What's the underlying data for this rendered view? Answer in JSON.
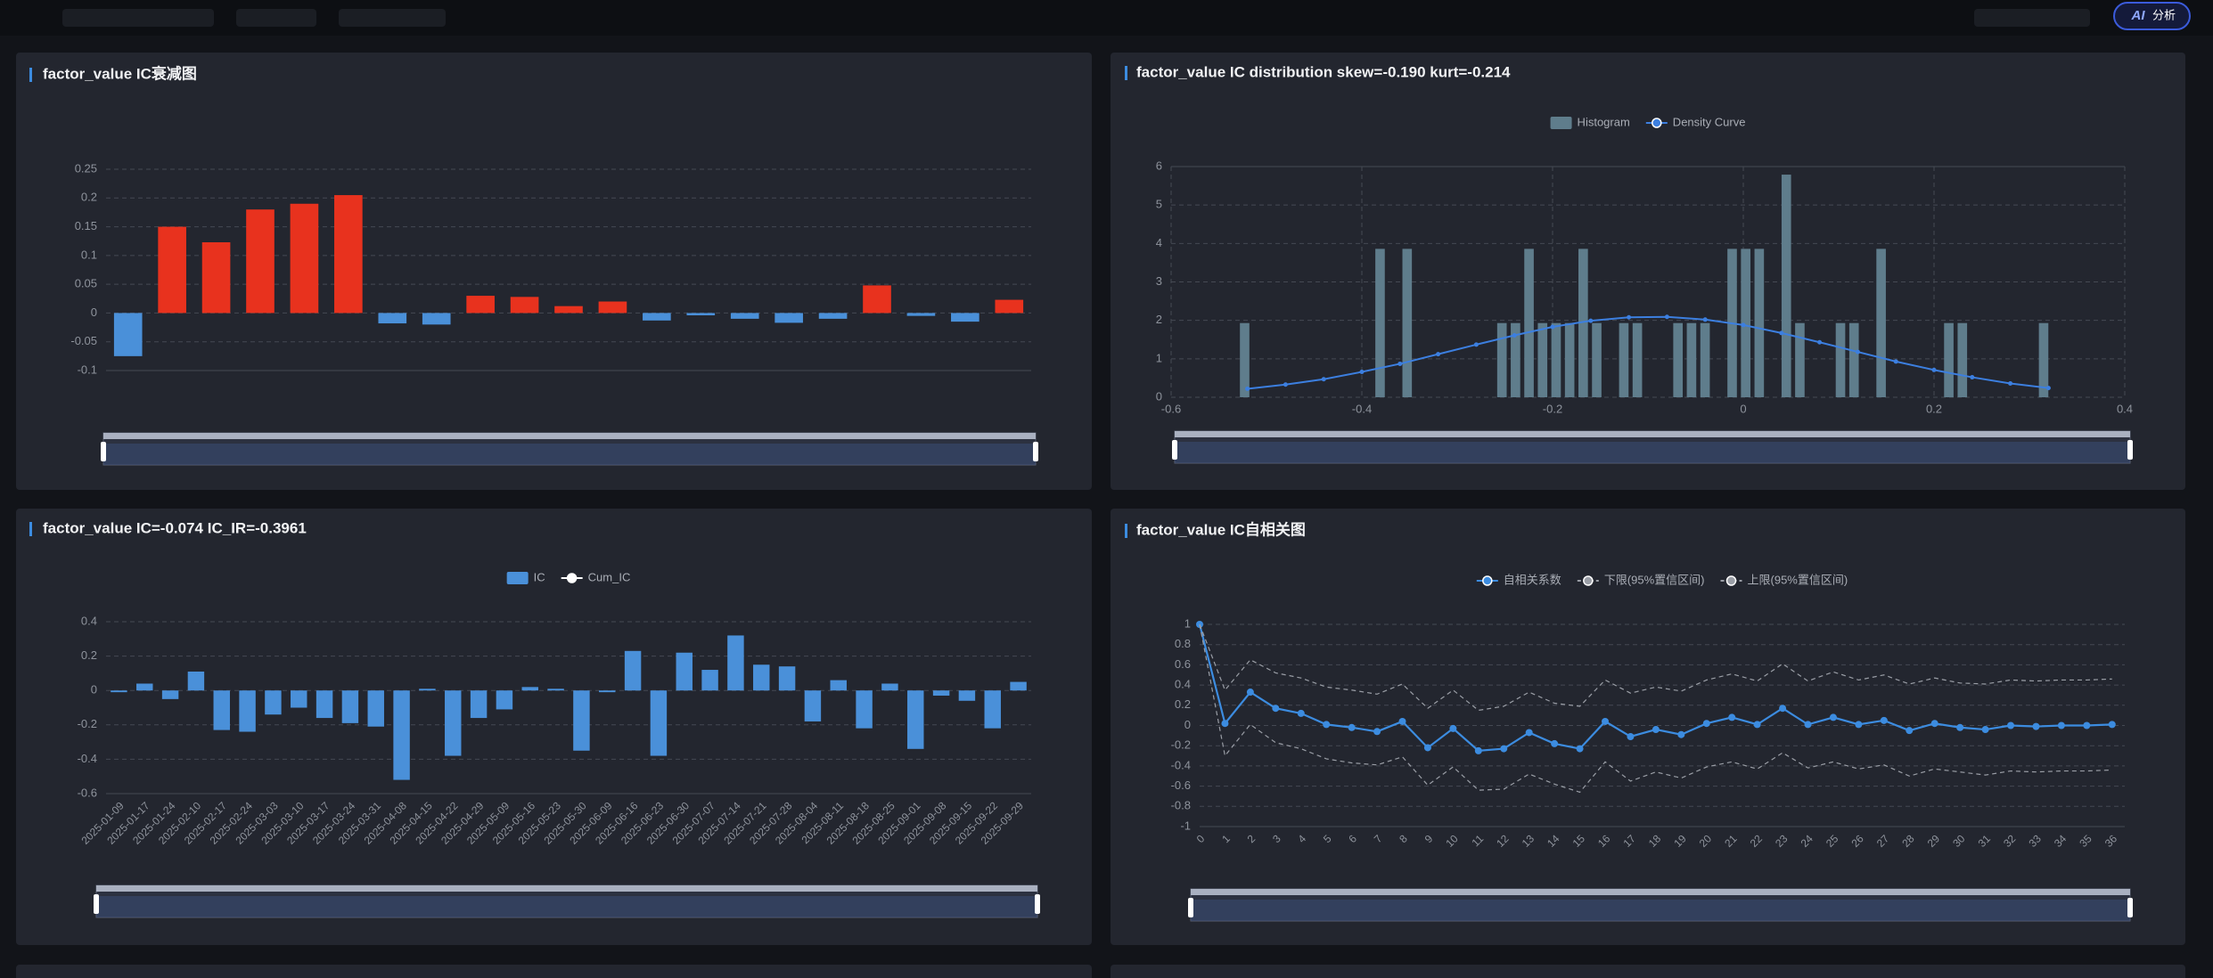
{
  "ai_button": {
    "icon": "AI",
    "label": "分析"
  },
  "chart_data": [
    {
      "type": "bar",
      "title": "factor_value IC衰减图",
      "categories": [
        null,
        null,
        null,
        null,
        null,
        null,
        null,
        null,
        null,
        null,
        null,
        null,
        null,
        null,
        null,
        null,
        null,
        null,
        null,
        null,
        null
      ],
      "values": [
        -0.075,
        0.15,
        0.123,
        0.18,
        0.19,
        0.205,
        -0.018,
        -0.02,
        0.03,
        0.028,
        0.012,
        0.02,
        -0.013,
        -0.004,
        -0.01,
        -0.017,
        -0.01,
        0.048,
        -0.005,
        -0.015,
        0.023
      ],
      "positive_color": "#e8321e",
      "negative_color": "#4a90d9",
      "ylim": [
        -0.1,
        0.25
      ],
      "yticks": [
        0.25,
        0.2,
        0.15,
        0.1,
        0.05,
        0,
        -0.05,
        -0.1
      ],
      "grid": true,
      "legend": false
    },
    {
      "type": "histogram",
      "title": "factor_value IC distribution skew=-0.190 kurt=-0.214",
      "bins": [
        -0.53,
        -0.5158,
        -0.5016,
        -0.4874,
        -0.4732,
        -0.459,
        -0.4448,
        -0.4306,
        -0.4164,
        -0.4022,
        -0.388,
        -0.3738,
        -0.3596,
        -0.3454,
        -0.3312,
        -0.317,
        -0.3028,
        -0.2886,
        -0.2744,
        -0.2602,
        -0.246,
        -0.2318,
        -0.2176,
        -0.2034,
        -0.1892,
        -0.175,
        -0.1608,
        -0.1466,
        -0.1324,
        -0.1182,
        -0.104,
        -0.0898,
        -0.0756,
        -0.0614,
        -0.0472,
        -0.033,
        -0.0188,
        -0.0046,
        0.0096,
        0.0238,
        0.038,
        0.0522,
        0.0664,
        0.0806,
        0.0948,
        0.109,
        0.1232,
        0.1374,
        0.1516,
        0.1658,
        0.18,
        0.1942,
        0.2084,
        0.2226,
        0.2368,
        0.251,
        0.2652,
        0.2794,
        0.2936,
        0.3078,
        0.322
      ],
      "series": [
        {
          "name": "Histogram",
          "color": "#5f7d8c",
          "values": [
            1.93,
            0,
            0,
            0,
            0,
            0,
            0,
            0,
            0,
            0,
            3.86,
            0,
            3.86,
            0,
            0,
            0,
            0,
            0,
            0,
            1.93,
            1.93,
            3.86,
            1.93,
            1.93,
            1.93,
            3.86,
            1.93,
            0,
            1.93,
            1.93,
            0,
            0,
            1.93,
            1.93,
            1.93,
            0,
            3.86,
            3.86,
            3.86,
            0,
            5.79,
            1.93,
            0,
            0,
            1.93,
            1.93,
            0,
            3.86,
            0,
            0,
            0,
            0,
            1.93,
            1.93,
            0,
            0,
            0,
            0,
            0,
            1.93
          ]
        },
        {
          "name": "Density Curve",
          "type": "line",
          "color": "#3c7fe0",
          "x": [
            -0.52,
            -0.48,
            -0.44,
            -0.4,
            -0.36,
            -0.32,
            -0.28,
            -0.24,
            -0.2,
            -0.16,
            -0.12,
            -0.08,
            -0.04,
            0,
            0.04,
            0.08,
            0.12,
            0.16,
            0.2,
            0.24,
            0.28,
            0.32
          ],
          "values": [
            0.22,
            0.33,
            0.47,
            0.66,
            0.87,
            1.12,
            1.37,
            1.61,
            1.83,
            1.99,
            2.08,
            2.09,
            2.02,
            1.88,
            1.67,
            1.43,
            1.18,
            0.93,
            0.71,
            0.52,
            0.36,
            0.24
          ]
        }
      ],
      "xlim": [
        -0.6,
        0.4
      ],
      "xticks": [
        -0.6,
        -0.4,
        -0.2,
        0,
        0.2,
        0.4
      ],
      "ylim": [
        0,
        6
      ],
      "yticks": [
        0,
        1,
        2,
        3,
        4,
        5,
        6
      ],
      "grid": true,
      "legend": true
    },
    {
      "type": "bar",
      "title": "factor_value IC=-0.074 IC_IR=-0.3961",
      "categories": [
        "2025-01-09",
        "2025-01-17",
        "2025-01-24",
        "2025-02-10",
        "2025-02-17",
        "2025-02-24",
        "2025-03-03",
        "2025-03-10",
        "2025-03-17",
        "2025-03-24",
        "2025-03-31",
        "2025-04-08",
        "2025-04-15",
        "2025-04-22",
        "2025-04-29",
        "2025-05-09",
        "2025-05-16",
        "2025-05-23",
        "2025-05-30",
        "2025-06-09",
        "2025-06-16",
        "2025-06-23",
        "2025-06-30",
        "2025-07-07",
        "2025-07-14",
        "2025-07-21",
        "2025-07-28",
        "2025-08-04",
        "2025-08-11",
        "2025-08-18",
        "2025-08-25",
        "2025-09-01",
        "2025-09-08",
        "2025-09-15",
        "2025-09-22",
        "2025-09-29"
      ],
      "series": [
        {
          "name": "IC",
          "color": "#4a90d9",
          "values": [
            -0.01,
            0.04,
            -0.05,
            0.11,
            -0.23,
            -0.24,
            -0.14,
            -0.1,
            -0.16,
            -0.19,
            -0.21,
            -0.52,
            0.01,
            -0.38,
            -0.16,
            -0.11,
            0.02,
            0.01,
            -0.35,
            -0.01,
            0.23,
            -0.38,
            0.22,
            0.12,
            0.32,
            0.15,
            0.14,
            -0.18,
            0.06,
            -0.22,
            0.04,
            -0.34,
            -0.03,
            -0.06,
            -0.22,
            0.05
          ]
        },
        {
          "name": "Cum_IC",
          "type": "line",
          "color": "#ffffff",
          "values": [
            null,
            null,
            null,
            null,
            null,
            null,
            null,
            null,
            null,
            null,
            null,
            null,
            null,
            null,
            null,
            null,
            null,
            null,
            null,
            null,
            null,
            null,
            null,
            null,
            null,
            null,
            null,
            null,
            null,
            null,
            null,
            null,
            null,
            null,
            null,
            null
          ]
        }
      ],
      "ylim": [
        -0.6,
        0.4
      ],
      "yticks": [
        0.4,
        0.2,
        0,
        -0.2,
        -0.4,
        -0.6
      ],
      "grid": true,
      "legend": true
    },
    {
      "type": "line",
      "title": "factor_value IC自相关图",
      "categories": [
        "0",
        "1",
        "2",
        "3",
        "4",
        "5",
        "6",
        "7",
        "8",
        "9",
        "10",
        "11",
        "12",
        "13",
        "14",
        "15",
        "16",
        "17",
        "18",
        "19",
        "20",
        "21",
        "22",
        "23",
        "24",
        "25",
        "26",
        "27",
        "28",
        "29",
        "30",
        "31",
        "32",
        "33",
        "34",
        "35",
        "36"
      ],
      "series": [
        {
          "name": "自相关系数",
          "color": "#3c8ce0",
          "markers": true,
          "dash": false,
          "values": [
            1,
            0.02,
            0.33,
            0.17,
            0.12,
            0.01,
            -0.02,
            -0.06,
            0.04,
            -0.22,
            -0.03,
            -0.25,
            -0.23,
            -0.07,
            -0.18,
            -0.23,
            0.04,
            -0.11,
            -0.04,
            -0.09,
            0.02,
            0.08,
            0.01,
            0.17,
            0.01,
            0.08,
            0.01,
            0.05,
            -0.05,
            0.02,
            -0.02,
            -0.04,
            0,
            -0.01,
            0,
            0,
            0.01
          ]
        },
        {
          "name": "下限(95%置信区间)",
          "color": "#9a9ea6",
          "markers": false,
          "dash": true,
          "values": [
            1,
            -0.3,
            0.01,
            -0.17,
            -0.23,
            -0.33,
            -0.37,
            -0.39,
            -0.31,
            -0.59,
            -0.41,
            -0.64,
            -0.63,
            -0.48,
            -0.58,
            -0.66,
            -0.36,
            -0.55,
            -0.46,
            -0.52,
            -0.41,
            -0.36,
            -0.43,
            -0.27,
            -0.42,
            -0.36,
            -0.43,
            -0.39,
            -0.5,
            -0.43,
            -0.46,
            -0.49,
            -0.45,
            -0.46,
            -0.45,
            -0.45,
            -0.44
          ]
        },
        {
          "name": "上限(95%置信区间)",
          "color": "#9a9ea6",
          "markers": false,
          "dash": true,
          "values": [
            1,
            0.35,
            0.65,
            0.52,
            0.47,
            0.38,
            0.35,
            0.31,
            0.41,
            0.17,
            0.35,
            0.15,
            0.19,
            0.33,
            0.22,
            0.19,
            0.45,
            0.32,
            0.38,
            0.34,
            0.45,
            0.51,
            0.44,
            0.61,
            0.44,
            0.53,
            0.45,
            0.5,
            0.41,
            0.47,
            0.42,
            0.41,
            0.45,
            0.44,
            0.45,
            0.45,
            0.46
          ]
        }
      ],
      "ylim": [
        -1,
        1
      ],
      "yticks": [
        1,
        0.8,
        0.6,
        0.4,
        0.2,
        0,
        -0.2,
        -0.4,
        -0.6,
        -0.8,
        -1
      ],
      "grid": true,
      "legend": true
    }
  ]
}
